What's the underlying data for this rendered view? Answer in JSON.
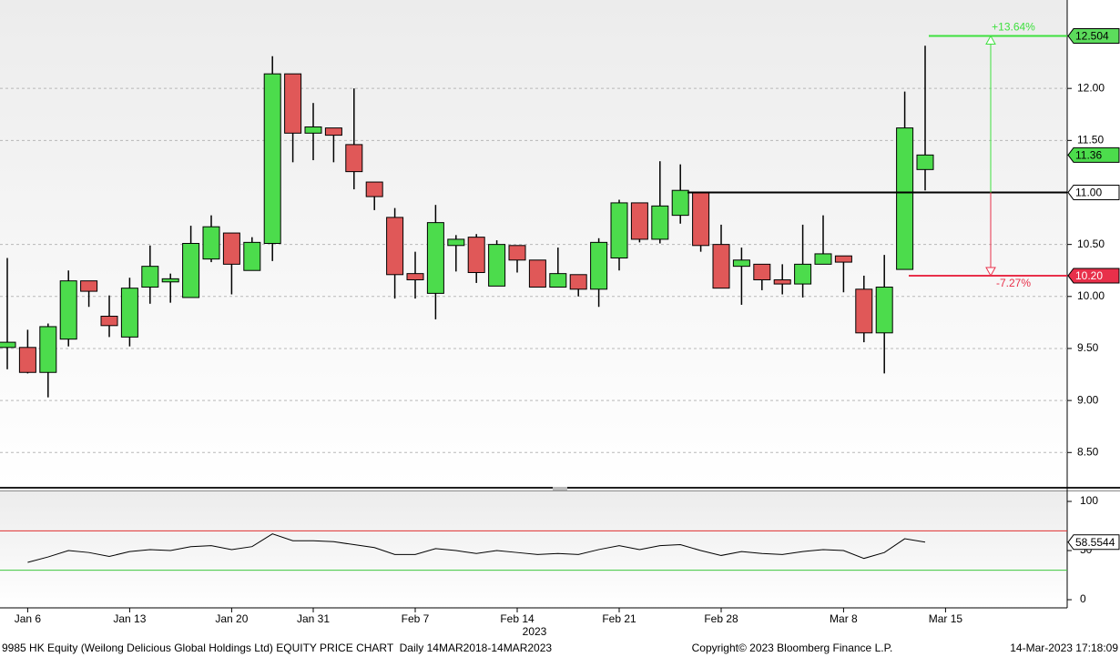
{
  "chart_data": [
    {
      "type": "candlestick",
      "categories": [
        null,
        "Jan 6",
        null,
        null,
        null,
        null,
        "Jan 13",
        null,
        null,
        null,
        null,
        "Jan 20",
        null,
        null,
        null,
        "Jan 31",
        null,
        null,
        null,
        null,
        "Feb 7",
        null,
        null,
        null,
        null,
        "Feb 14",
        null,
        null,
        null,
        null,
        "Feb 21",
        null,
        null,
        null,
        null,
        "Feb 28",
        null,
        null,
        null,
        null,
        null,
        "Mar 8",
        null,
        null,
        null,
        null,
        "Mar 15"
      ],
      "open": [
        9.51,
        9.51,
        9.27,
        9.59,
        10.15,
        9.81,
        9.61,
        10.09,
        10.14,
        9.99,
        10.36,
        10.61,
        10.25,
        10.51,
        12.14,
        11.57,
        11.62,
        11.46,
        11.1,
        10.76,
        10.22,
        10.03,
        10.49,
        10.57,
        10.1,
        10.49,
        10.35,
        10.09,
        10.21,
        10.07,
        10.37,
        10.9,
        10.55,
        10.78,
        11.0,
        10.5,
        10.29,
        10.31,
        10.16,
        10.12,
        10.31,
        10.39,
        10.07,
        9.65,
        10.26,
        11.22,
        null
      ],
      "high": [
        10.37,
        9.68,
        9.74,
        10.25,
        10.15,
        10.01,
        10.18,
        10.49,
        10.22,
        10.68,
        10.78,
        10.61,
        10.57,
        12.31,
        12.14,
        11.86,
        11.62,
        12.0,
        11.1,
        10.85,
        10.43,
        10.88,
        10.59,
        10.6,
        10.54,
        10.49,
        10.35,
        10.47,
        10.21,
        10.56,
        10.93,
        10.9,
        11.3,
        11.27,
        11.0,
        10.69,
        10.47,
        10.31,
        10.31,
        10.69,
        10.78,
        10.39,
        10.2,
        10.4,
        11.97,
        12.41,
        null
      ],
      "low": [
        9.3,
        9.26,
        9.03,
        9.52,
        9.9,
        9.61,
        9.52,
        9.93,
        9.94,
        9.99,
        10.33,
        10.02,
        10.25,
        10.34,
        11.29,
        11.31,
        11.29,
        11.03,
        10.83,
        9.98,
        9.98,
        9.78,
        10.24,
        10.13,
        10.1,
        10.23,
        10.09,
        10.09,
        10.0,
        9.9,
        10.25,
        10.52,
        10.51,
        10.7,
        10.43,
        10.08,
        9.92,
        10.06,
        10.02,
        9.99,
        10.31,
        10.04,
        9.56,
        9.26,
        10.26,
        11.02,
        null
      ],
      "close": [
        9.56,
        9.27,
        9.71,
        10.15,
        10.05,
        9.72,
        10.08,
        10.29,
        10.17,
        10.51,
        10.67,
        10.31,
        10.52,
        12.14,
        11.57,
        11.63,
        11.55,
        11.2,
        10.96,
        10.21,
        10.16,
        10.71,
        10.55,
        10.23,
        10.5,
        10.35,
        10.09,
        10.22,
        10.07,
        10.52,
        10.9,
        10.55,
        10.87,
        11.02,
        10.49,
        10.08,
        10.35,
        10.16,
        10.12,
        10.31,
        10.41,
        10.33,
        9.65,
        10.09,
        11.62,
        11.36,
        null
      ],
      "up_color": "#4cdc4c",
      "down_color": "#e05858",
      "ylim": [
        8.17,
        12.85
      ],
      "yticks": [
        {
          "value": 8.5,
          "label": "8.50"
        },
        {
          "value": 9,
          "label": "9.00"
        },
        {
          "value": 9.5,
          "label": "9.50"
        },
        {
          "value": 10,
          "label": "10.00"
        },
        {
          "value": 10.5,
          "label": "10.50"
        },
        {
          "value": 11.5,
          "label": "11.50"
        },
        {
          "value": 12,
          "label": "12.00"
        }
      ],
      "grid": true,
      "levels": [
        {
          "value": 11,
          "label": "11.00",
          "color": "#000000",
          "box_color": "#ffffff",
          "text_color": "#000000"
        },
        {
          "value": 12.504,
          "label": "12.504",
          "color": "#3ee03e",
          "box_color": "#5cdc5c",
          "text_color": "#000000"
        },
        {
          "value": 10.2,
          "label": "10.20",
          "color": "#e8304a",
          "box_color": "#e8304a",
          "text_color": "#ffffff"
        }
      ],
      "last_price": 11.36,
      "annotations": [
        "+13.64%",
        "-7.27%"
      ],
      "x_year": "2023"
    },
    {
      "type": "line",
      "values": [
        null,
        38,
        43.5,
        50,
        48,
        44,
        49,
        51,
        50,
        54,
        55,
        51,
        54,
        67,
        60,
        60,
        59,
        56,
        53,
        46,
        46,
        52,
        50,
        47,
        50,
        48,
        46,
        47,
        46,
        51,
        55,
        51,
        55,
        56,
        50,
        45,
        49,
        47,
        46,
        49,
        51,
        50,
        42,
        48,
        62,
        58.5544,
        null
      ],
      "color": "#000000",
      "ylim": [
        -8.3,
        110.2
      ],
      "yticks": [
        0,
        50,
        100
      ],
      "hlines": [
        {
          "value": 70,
          "color": "#e03030"
        },
        {
          "value": 30,
          "color": "#3cc83c"
        }
      ]
    }
  ],
  "footer": {
    "left": "9985 HK Equity (Weilong Delicious Global Holdings Ltd) EQUITY PRICE CHART  Daily 14MAR2018-14MAR2023",
    "center": "Copyright© 2023 Bloomberg Finance L.P.",
    "right": "14-Mar-2023 17:18:09"
  }
}
